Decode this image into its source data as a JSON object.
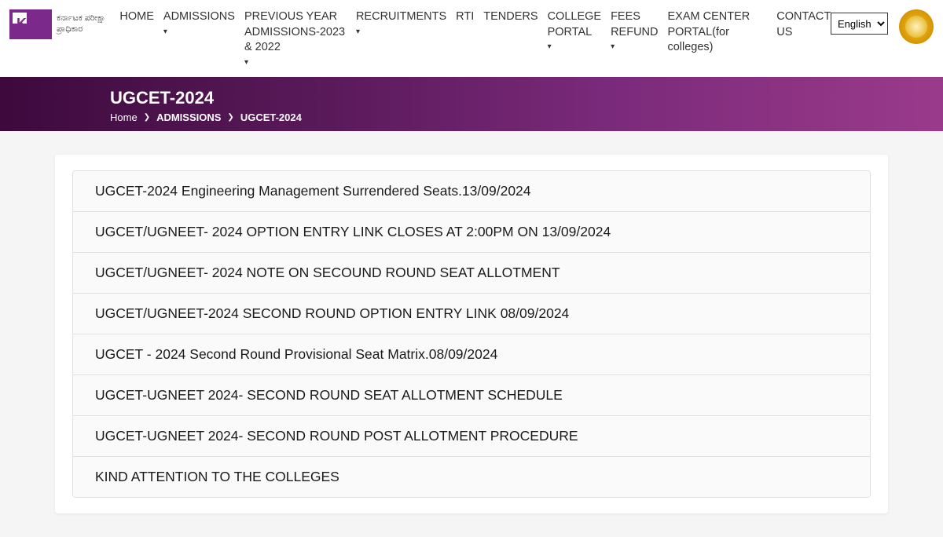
{
  "logo": {
    "letters": "KEA",
    "subtitle_line1": "ಕರ್ನಾಟಕ ಪರೀಕ್ಷಾ",
    "subtitle_line2": "ಪ್ರಾಧಿಕಾರ"
  },
  "nav": [
    {
      "label": "HOME",
      "dropdown": false
    },
    {
      "label": "ADMISSIONS",
      "dropdown": true
    },
    {
      "label": "PREVIOUS YEAR ADMISSIONS-2023 & 2022",
      "dropdown": true
    },
    {
      "label": "RECRUITMENTS",
      "dropdown": true
    },
    {
      "label": "RTI",
      "dropdown": false
    },
    {
      "label": "TENDERS",
      "dropdown": false
    },
    {
      "label": "COLLEGE PORTAL",
      "dropdown": true
    },
    {
      "label": "FEES REFUND",
      "dropdown": true
    },
    {
      "label": "EXAM CENTER PORTAL(for colleges)",
      "dropdown": false
    },
    {
      "label": "CONTACT US",
      "dropdown": false
    }
  ],
  "language": {
    "selected": "English"
  },
  "banner": {
    "title": "UGCET-2024"
  },
  "breadcrumb": {
    "home": "Home",
    "mid": "ADMISSIONS",
    "current": "UGCET-2024"
  },
  "notices": [
    "UGCET-2024 Engineering Management Surrendered Seats.13/09/2024",
    "UGCET/UGNEET- 2024 OPTION ENTRY LINK CLOSES AT 2:00PM ON 13/09/2024",
    "UGCET/UGNEET- 2024 NOTE ON SECOUND ROUND SEAT ALLOTMENT",
    "UGCET/UGNEET-2024 SECOND ROUND OPTION ENTRY LINK 08/09/2024",
    "UGCET - 2024 Second Round Provisional Seat Matrix.08/09/2024",
    "UGCET-UGNEET 2024- SECOND ROUND SEAT ALLOTMENT SCHEDULE",
    "UGCET-UGNEET 2024- SECOND ROUND POST ALLOTMENT PROCEDURE",
    "KIND ATTENTION TO THE COLLEGES"
  ]
}
